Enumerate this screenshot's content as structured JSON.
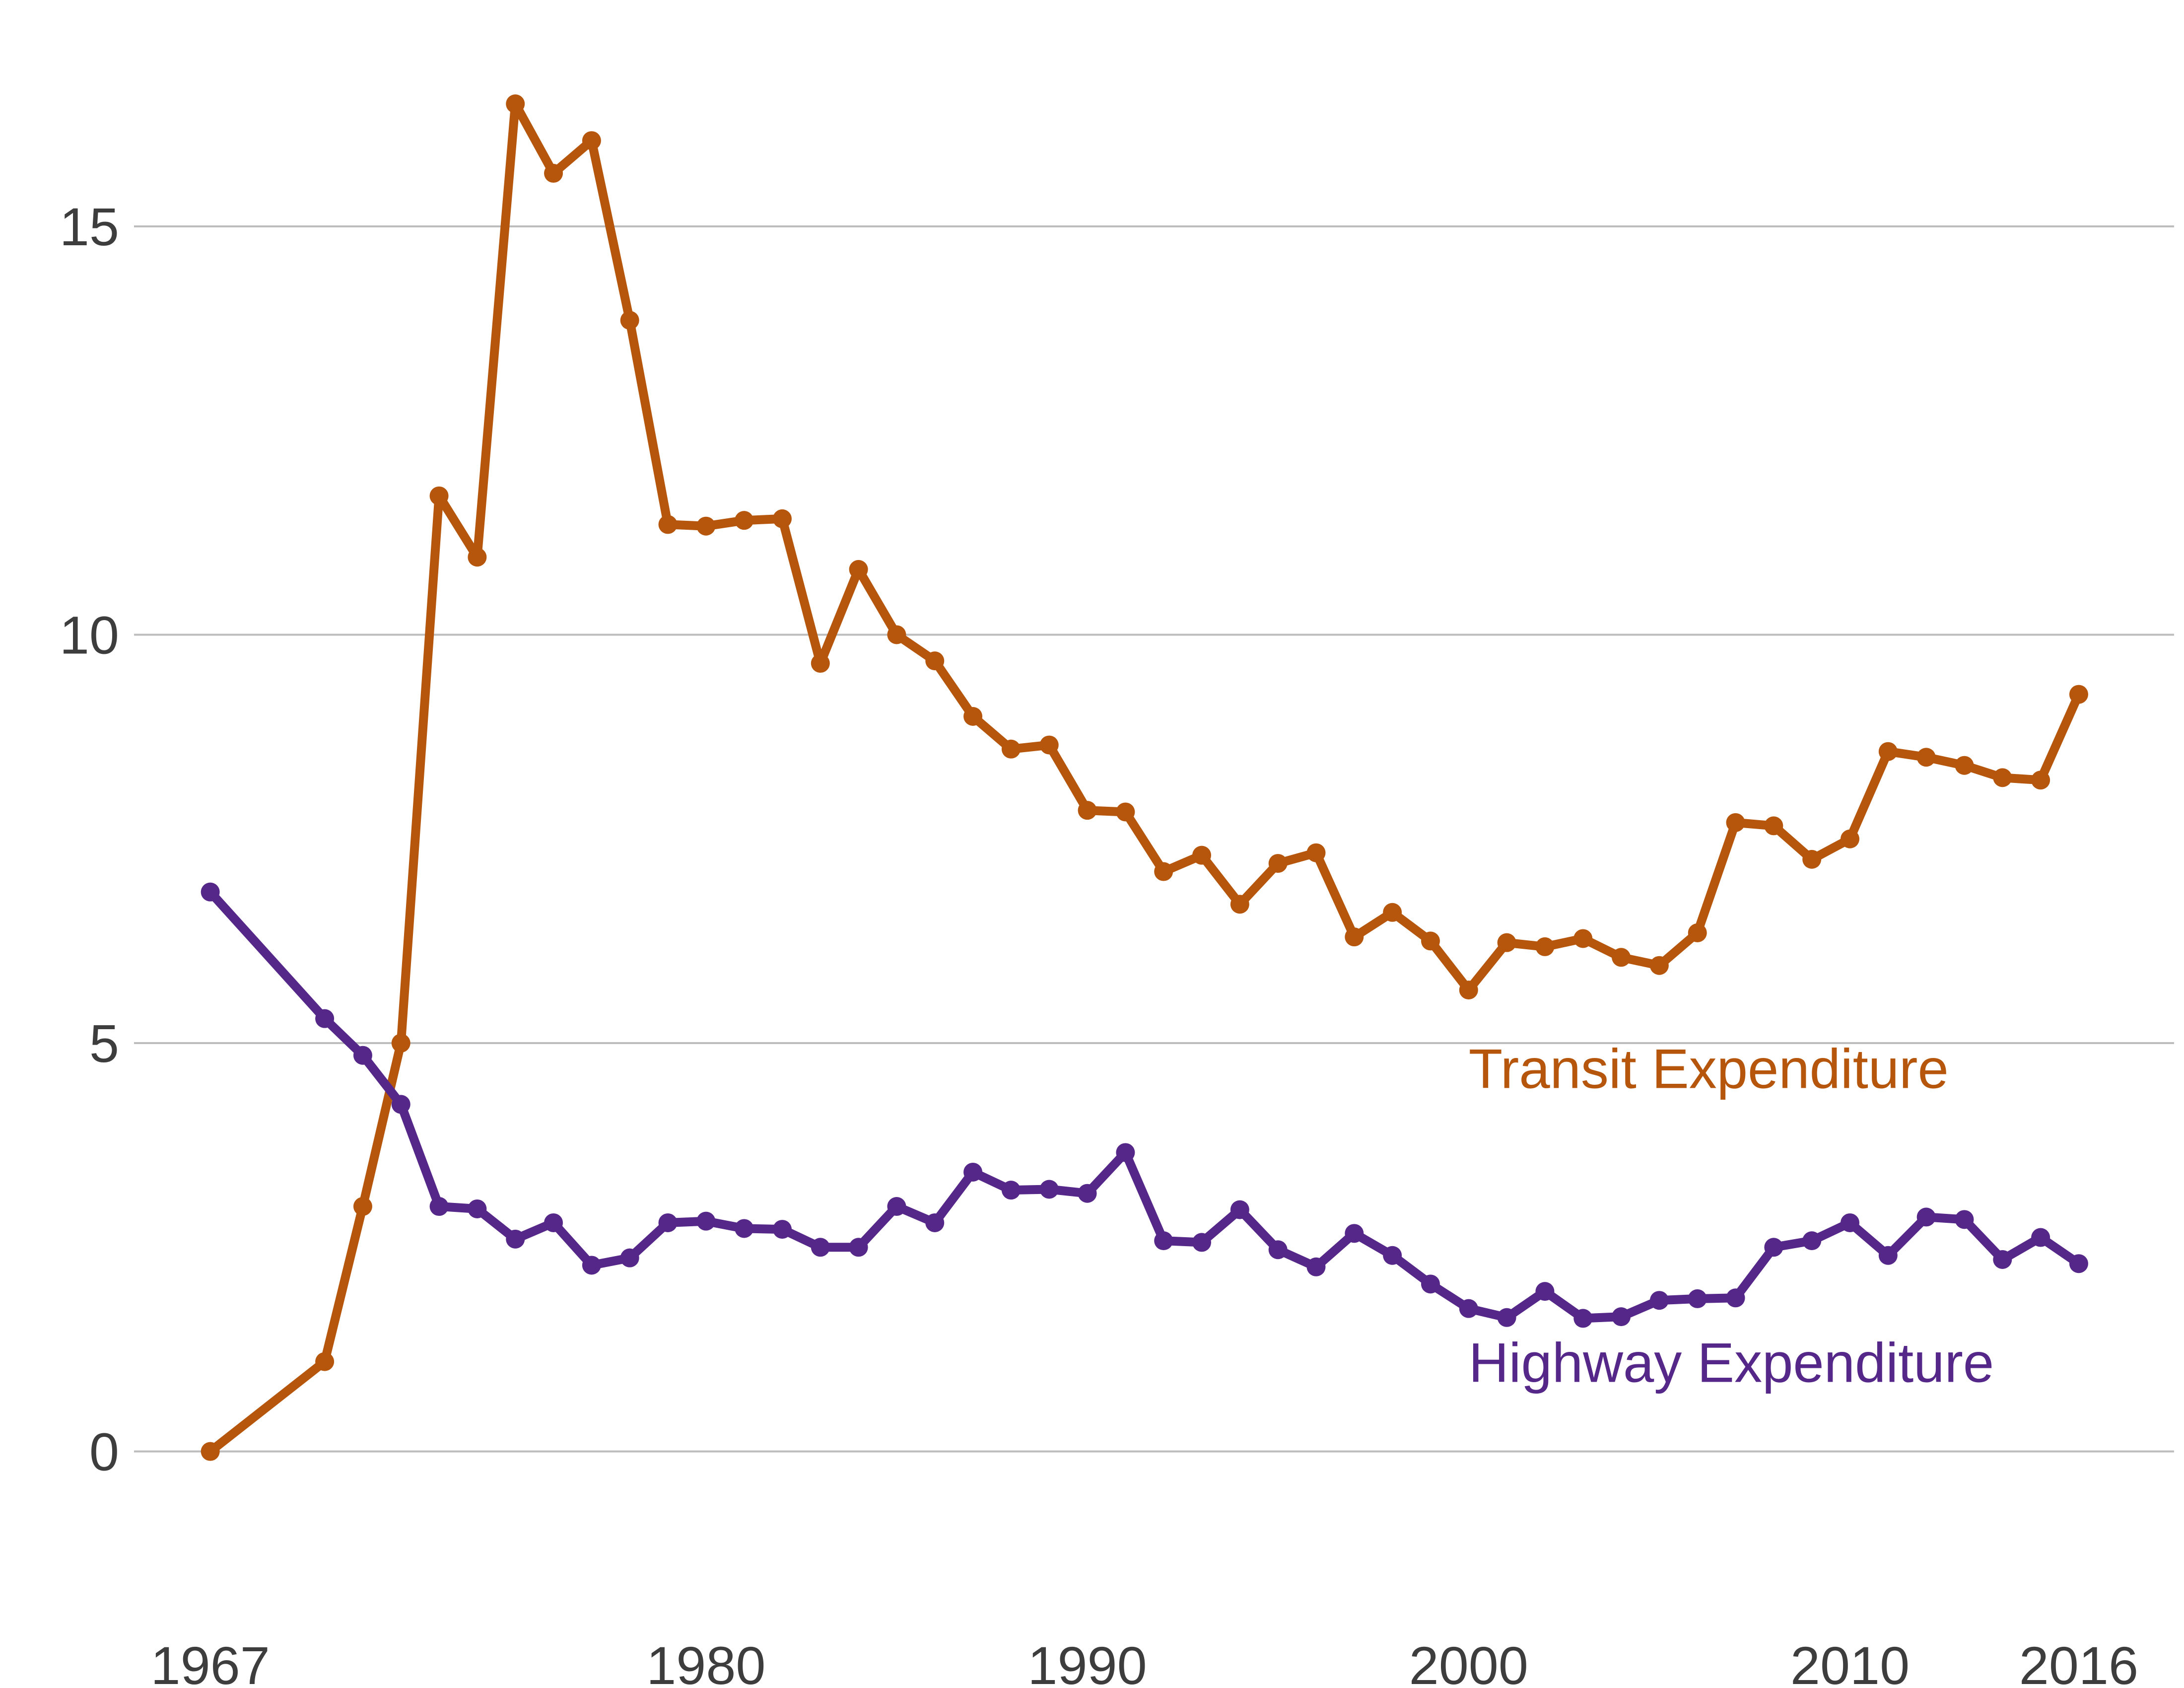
{
  "chart_data": {
    "type": "line",
    "title": "",
    "xlabel": "",
    "ylabel": "",
    "xlim": [
      1965,
      2018.5
    ],
    "ylim": [
      -1.65,
      17.65
    ],
    "x_ticks": [
      {
        "value": 1967,
        "label": "1967"
      },
      {
        "value": 1980,
        "label": "1980"
      },
      {
        "value": 1990,
        "label": "1990"
      },
      {
        "value": 2000,
        "label": "2000"
      },
      {
        "value": 2010,
        "label": "2010"
      },
      {
        "value": 2016,
        "label": "2016"
      }
    ],
    "y_ticks": [
      {
        "value": 0,
        "label": "0"
      },
      {
        "value": 5,
        "label": "5"
      },
      {
        "value": 10,
        "label": "10"
      },
      {
        "value": 15,
        "label": "15"
      }
    ],
    "grid": "horizontal",
    "legend": "direct labels",
    "series": [
      {
        "name": "Transit Expenditure",
        "color": "#b5560c",
        "label_anchor": [
          2000,
          4.45
        ],
        "points": [
          [
            1967,
            0.0
          ],
          [
            1970,
            1.1
          ],
          [
            1971,
            3.0
          ],
          [
            1972,
            5.0
          ],
          [
            1973,
            11.7
          ],
          [
            1974,
            10.95
          ],
          [
            1975,
            16.5
          ],
          [
            1976,
            15.65
          ],
          [
            1977,
            16.05
          ],
          [
            1978,
            13.85
          ],
          [
            1979,
            11.35
          ],
          [
            1980,
            11.33
          ],
          [
            1981,
            11.4
          ],
          [
            1982,
            11.42
          ],
          [
            1983,
            9.65
          ],
          [
            1984,
            10.8
          ],
          [
            1985,
            10.0
          ],
          [
            1986,
            9.68
          ],
          [
            1987,
            9.0
          ],
          [
            1988,
            8.6
          ],
          [
            1989,
            8.65
          ],
          [
            1990,
            7.85
          ],
          [
            1991,
            7.83
          ],
          [
            1992,
            7.1
          ],
          [
            1993,
            7.3
          ],
          [
            1994,
            6.7
          ],
          [
            1995,
            7.2
          ],
          [
            1996,
            7.33
          ],
          [
            1997,
            6.3
          ],
          [
            1998,
            6.6
          ],
          [
            1999,
            6.25
          ],
          [
            2000,
            5.65
          ],
          [
            2001,
            6.23
          ],
          [
            2002,
            6.18
          ],
          [
            2003,
            6.28
          ],
          [
            2004,
            6.05
          ],
          [
            2005,
            5.95
          ],
          [
            2006,
            6.35
          ],
          [
            2007,
            7.7
          ],
          [
            2008,
            7.66
          ],
          [
            2009,
            7.25
          ],
          [
            2010,
            7.5
          ],
          [
            2011,
            8.57
          ],
          [
            2012,
            8.5
          ],
          [
            2013,
            8.4
          ],
          [
            2014,
            8.25
          ],
          [
            2015,
            8.22
          ],
          [
            2016,
            9.27
          ]
        ]
      },
      {
        "name": "Highway Expenditure",
        "color": "#542788",
        "label_anchor": [
          2000,
          0.85
        ],
        "points": [
          [
            1967,
            6.85
          ],
          [
            1970,
            5.3
          ],
          [
            1971,
            4.85
          ],
          [
            1972,
            4.25
          ],
          [
            1973,
            3.0
          ],
          [
            1974,
            2.97
          ],
          [
            1975,
            2.6
          ],
          [
            1976,
            2.8
          ],
          [
            1977,
            2.28
          ],
          [
            1978,
            2.37
          ],
          [
            1979,
            2.8
          ],
          [
            1980,
            2.82
          ],
          [
            1981,
            2.73
          ],
          [
            1982,
            2.72
          ],
          [
            1983,
            2.5
          ],
          [
            1984,
            2.5
          ],
          [
            1985,
            3.0
          ],
          [
            1986,
            2.8
          ],
          [
            1987,
            3.42
          ],
          [
            1988,
            3.2
          ],
          [
            1989,
            3.21
          ],
          [
            1990,
            3.16
          ],
          [
            1991,
            3.66
          ],
          [
            1992,
            2.58
          ],
          [
            1993,
            2.56
          ],
          [
            1994,
            2.96
          ],
          [
            1995,
            2.47
          ],
          [
            1996,
            2.26
          ],
          [
            1997,
            2.67
          ],
          [
            1998,
            2.4
          ],
          [
            1999,
            2.05
          ],
          [
            2000,
            1.75
          ],
          [
            2001,
            1.64
          ],
          [
            2002,
            1.96
          ],
          [
            2003,
            1.63
          ],
          [
            2004,
            1.65
          ],
          [
            2005,
            1.85
          ],
          [
            2006,
            1.87
          ],
          [
            2007,
            1.88
          ],
          [
            2008,
            2.5
          ],
          [
            2009,
            2.58
          ],
          [
            2010,
            2.8
          ],
          [
            2011,
            2.4
          ],
          [
            2012,
            2.87
          ],
          [
            2013,
            2.84
          ],
          [
            2014,
            2.35
          ],
          [
            2015,
            2.62
          ],
          [
            2016,
            2.3
          ]
        ]
      }
    ]
  }
}
